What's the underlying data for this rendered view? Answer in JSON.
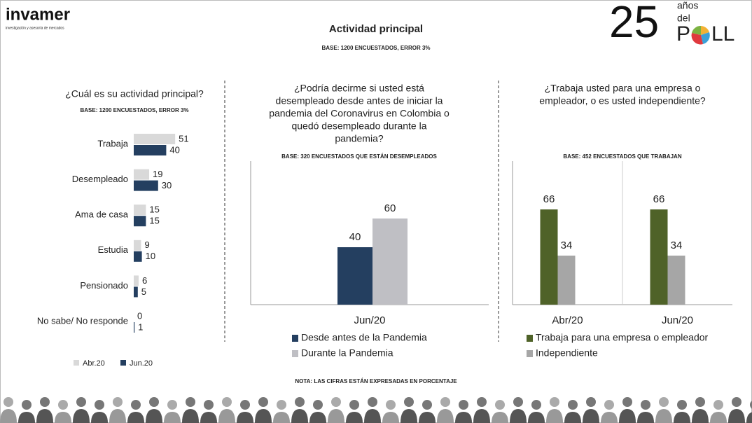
{
  "header": {
    "logo": "invamer",
    "logo_tagline": "investigación y asesoría de mercados",
    "title": "Actividad principal",
    "subtitle": "BASE: 1200 ENCUESTADOS, ERROR 3%",
    "badge_number": "25",
    "badge_line1": "años",
    "badge_line2": "del",
    "badge_word_start": "P",
    "badge_word_end": "LL"
  },
  "note": "NOTA: LAS CIFRAS ESTÁN EXPRESADAS EN PORCENTAJE",
  "chart_data": [
    {
      "type": "hbar",
      "title": [
        "¿Cuál es su actividad principal?"
      ],
      "subtitle": "BASE: 1200 ENCUESTADOS, ERROR 3%",
      "categories": [
        "Trabaja",
        "Desempleado",
        "Ama de casa",
        "Estudia",
        "Pensionado",
        "No sabe/ No responde"
      ],
      "series": [
        {
          "name": "Abr.20",
          "color": "#d9d9d9",
          "values": [
            51,
            19,
            15,
            9,
            6,
            0
          ]
        },
        {
          "name": "Jun.20",
          "color": "#243f60",
          "values": [
            40,
            30,
            15,
            10,
            5,
            1
          ]
        }
      ]
    },
    {
      "type": "bar",
      "title": [
        "¿Podría decirme si usted está",
        "desempleado desde antes de iniciar la",
        "pandemia del Coronavirus en Colombia o",
        "quedó desempleado durante la",
        "pandemia?"
      ],
      "subtitle": "BASE: 320 ENCUESTADOS QUE ESTÁN DESEMPLEADOS",
      "categories": [
        "Jun/20"
      ],
      "series": [
        {
          "name": "Desde antes de la Pandemia",
          "color": "#243f60",
          "values": [
            40
          ]
        },
        {
          "name": "Durante la Pandemia",
          "color": "#bfbfc4",
          "values": [
            60
          ]
        }
      ]
    },
    {
      "type": "bar",
      "title": [
        "¿Trabaja usted para una empresa o",
        "empleador, o es usted independiente?"
      ],
      "subtitle": "BASE: 452 ENCUESTADOS QUE TRABAJAN",
      "categories": [
        "Abr/20",
        "Jun/20"
      ],
      "series": [
        {
          "name": "Trabaja para una empresa o empleador",
          "color": "#4f6228",
          "values": [
            66,
            66
          ]
        },
        {
          "name": "Independiente",
          "color": "#a6a6a6",
          "values": [
            34,
            34
          ]
        }
      ]
    }
  ]
}
